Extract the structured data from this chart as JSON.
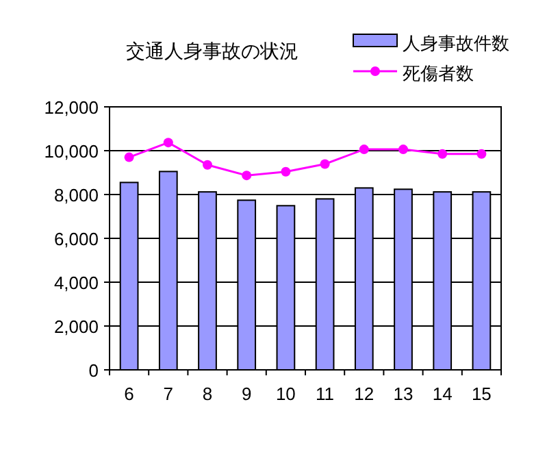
{
  "chart_data": {
    "type": "bar",
    "title": "交通人身事故の状況",
    "categories": [
      "6",
      "7",
      "8",
      "9",
      "10",
      "11",
      "12",
      "13",
      "14",
      "15"
    ],
    "series": [
      {
        "name": "人身事故件数",
        "color": "#9999ff",
        "values": [
          8550,
          9050,
          8120,
          7740,
          7490,
          7800,
          8300,
          8240,
          8120,
          8120
        ]
      },
      {
        "name": "死傷者数",
        "type": "line",
        "color": "#ff00ff",
        "marker": "circle",
        "values": [
          9700,
          10370,
          9350,
          8870,
          9040,
          9390,
          10060,
          10060,
          9850,
          9850
        ]
      }
    ],
    "ylim": [
      0,
      12000
    ],
    "yticks": [
      {
        "value": 0,
        "label": "0"
      },
      {
        "value": 2000,
        "label": "2,000"
      },
      {
        "value": 4000,
        "label": "4,000"
      },
      {
        "value": 6000,
        "label": "6,000"
      },
      {
        "value": 8000,
        "label": "8,000"
      },
      {
        "value": 10000,
        "label": "10,000"
      },
      {
        "value": 12000,
        "label": "12,000"
      }
    ],
    "grid": "y",
    "legend": "top right"
  }
}
